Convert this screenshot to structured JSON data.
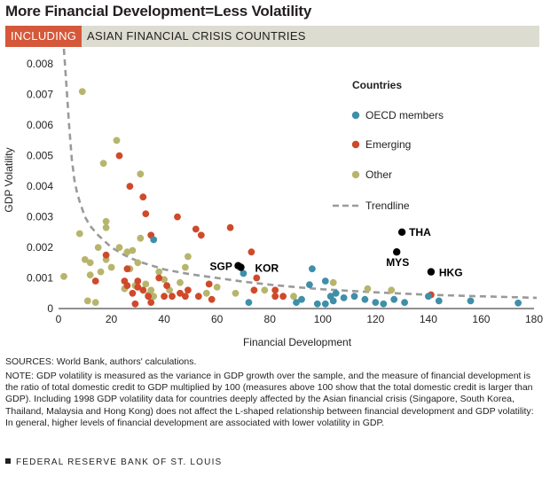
{
  "title": "More Financial Development=Less Volatility",
  "banner": {
    "tag": "INCLUDING",
    "text": "ASIAN FINANCIAL CRISIS COUNTRIES"
  },
  "colors": {
    "oecd": "#3f8fa8",
    "emerging": "#cf4a2a",
    "other": "#b7b56c",
    "crisis": "#000000",
    "trend": "#9a9a9a",
    "banner_tag": "#d5583a",
    "banner_bg": "#dcdcd0"
  },
  "chart_data": {
    "type": "scatter",
    "xlabel": "Financial Development",
    "ylabel": "GDP Volatility",
    "xlim": [
      0,
      180
    ],
    "ylim": [
      0,
      0.0085
    ],
    "xticks": [
      0,
      20,
      40,
      60,
      80,
      100,
      120,
      140,
      160,
      180
    ],
    "yticks": [
      0,
      0.001,
      0.002,
      0.003,
      0.004,
      0.005,
      0.006,
      0.007,
      0.008
    ],
    "ytick_labels": [
      "0",
      "0.001",
      "0.002",
      "0.003",
      "0.004",
      "0.005",
      "0.006",
      "0.007",
      "0.008"
    ],
    "legend": {
      "title": "Countries",
      "placement": "top-right",
      "trend_label": "Trendline"
    },
    "series": [
      {
        "name": "OECD members",
        "points": [
          [
            36,
            0.00225
          ],
          [
            70,
            0.00115
          ],
          [
            72,
            0.0002
          ],
          [
            90,
            0.0002
          ],
          [
            92,
            0.0003
          ],
          [
            95,
            0.00078
          ],
          [
            96,
            0.0013
          ],
          [
            98,
            0.00015
          ],
          [
            101,
            0.0009
          ],
          [
            101,
            0.00015
          ],
          [
            103,
            0.0004
          ],
          [
            104,
            0.00025
          ],
          [
            105,
            0.0005
          ],
          [
            108,
            0.00035
          ],
          [
            112,
            0.0004
          ],
          [
            116,
            0.0003
          ],
          [
            120,
            0.0002
          ],
          [
            123,
            0.00015
          ],
          [
            127,
            0.0003
          ],
          [
            131,
            0.0002
          ],
          [
            140,
            0.0004
          ],
          [
            144,
            0.00025
          ],
          [
            156,
            0.00025
          ],
          [
            174,
            0.00018
          ]
        ]
      },
      {
        "name": "Emerging",
        "points": [
          [
            14,
            0.0009
          ],
          [
            18,
            0.00175
          ],
          [
            23,
            0.005
          ],
          [
            25,
            0.0009
          ],
          [
            26,
            0.0013
          ],
          [
            26,
            0.00075
          ],
          [
            27,
            0.004
          ],
          [
            28,
            0.0005
          ],
          [
            29,
            0.00015
          ],
          [
            30,
            0.0009
          ],
          [
            30,
            0.0007
          ],
          [
            32,
            0.00365
          ],
          [
            32,
            0.0006
          ],
          [
            33,
            0.0031
          ],
          [
            34,
            0.0004
          ],
          [
            35,
            0.0024
          ],
          [
            35,
            0.0002
          ],
          [
            38,
            0.001
          ],
          [
            40,
            0.0004
          ],
          [
            41,
            0.00075
          ],
          [
            43,
            0.0004
          ],
          [
            45,
            0.003
          ],
          [
            46,
            0.0005
          ],
          [
            48,
            0.0004
          ],
          [
            49,
            0.0006
          ],
          [
            52,
            0.0026
          ],
          [
            53,
            0.0004
          ],
          [
            54,
            0.0024
          ],
          [
            57,
            0.0008
          ],
          [
            58,
            0.0003
          ],
          [
            65,
            0.00265
          ],
          [
            73,
            0.00185
          ],
          [
            74,
            0.0006
          ],
          [
            75,
            0.001
          ],
          [
            82,
            0.0006
          ],
          [
            82,
            0.0004
          ],
          [
            85,
            0.0004
          ],
          [
            141,
            0.00045
          ]
        ]
      },
      {
        "name": "Other",
        "points": [
          [
            2,
            0.00105
          ],
          [
            8,
            0.00245
          ],
          [
            9,
            0.0071
          ],
          [
            10,
            0.0016
          ],
          [
            11,
            0.00025
          ],
          [
            12,
            0.0015
          ],
          [
            12,
            0.0011
          ],
          [
            14,
            0.0002
          ],
          [
            15,
            0.002
          ],
          [
            16,
            0.0012
          ],
          [
            17,
            0.00475
          ],
          [
            18,
            0.00285
          ],
          [
            18,
            0.00265
          ],
          [
            18,
            0.0016
          ],
          [
            20,
            0.00135
          ],
          [
            22,
            0.0055
          ],
          [
            23,
            0.002
          ],
          [
            25,
            0.00065
          ],
          [
            26,
            0.00185
          ],
          [
            27,
            0.0013
          ],
          [
            28,
            0.0019
          ],
          [
            29,
            0.00075
          ],
          [
            30,
            0.0015
          ],
          [
            31,
            0.0023
          ],
          [
            31,
            0.0044
          ],
          [
            33,
            0.0008
          ],
          [
            34,
            0.00045
          ],
          [
            35,
            0.0006
          ],
          [
            36,
            0.0004
          ],
          [
            38,
            0.0012
          ],
          [
            40,
            0.00095
          ],
          [
            42,
            0.0006
          ],
          [
            46,
            0.00085
          ],
          [
            48,
            0.00135
          ],
          [
            49,
            0.0017
          ],
          [
            56,
            0.0005
          ],
          [
            60,
            0.0007
          ],
          [
            67,
            0.0005
          ],
          [
            78,
            0.0006
          ],
          [
            89,
            0.0004
          ],
          [
            104,
            0.00085
          ],
          [
            117,
            0.00065
          ],
          [
            126,
            0.0006
          ]
        ]
      }
    ],
    "highlighted": [
      {
        "label": "SGP",
        "x": 68,
        "y": 0.0014
      },
      {
        "label": "KOR",
        "x": 69,
        "y": 0.00135
      },
      {
        "label": "THA",
        "x": 130,
        "y": 0.0025
      },
      {
        "label": "MYS",
        "x": 128,
        "y": 0.00185
      },
      {
        "label": "HKG",
        "x": 141,
        "y": 0.0012
      }
    ],
    "trendline": [
      [
        2,
        0.0085
      ],
      [
        3,
        0.0073
      ],
      [
        4,
        0.006
      ],
      [
        5,
        0.0049
      ],
      [
        6,
        0.0042
      ],
      [
        7,
        0.0038
      ],
      [
        8,
        0.0035
      ],
      [
        10,
        0.003
      ],
      [
        12,
        0.0027
      ],
      [
        15,
        0.0024
      ],
      [
        20,
        0.002
      ],
      [
        25,
        0.00175
      ],
      [
        30,
        0.00155
      ],
      [
        40,
        0.00128
      ],
      [
        50,
        0.00112
      ],
      [
        60,
        0.001
      ],
      [
        70,
        0.00088
      ],
      [
        80,
        0.00078
      ],
      [
        90,
        0.0007
      ],
      [
        100,
        0.00063
      ],
      [
        120,
        0.00053
      ],
      [
        140,
        0.00045
      ],
      [
        160,
        0.0004
      ],
      [
        181,
        0.00035
      ]
    ]
  },
  "sources": "SOURCES: World Bank, authors' calculations.",
  "note": "NOTE: GDP volatility is measured as the variance in GDP growth over the sample, and the measure of financial development is the ratio of total domestic credit to GDP multiplied by 100 (measures above 100 show that the total domestic credit is larger than GDP). Including 1998 GDP volatility data for countries deeply affected by the Asian financial crisis (Singapore, South Korea, Thailand, Malaysia and Hong Kong) does not affect the L-shaped relationship between financial development and GDP volatility: In general, higher levels of financial development are associated with lower volatility in GDP.",
  "footer": "FEDERAL RESERVE BANK OF ST. LOUIS"
}
